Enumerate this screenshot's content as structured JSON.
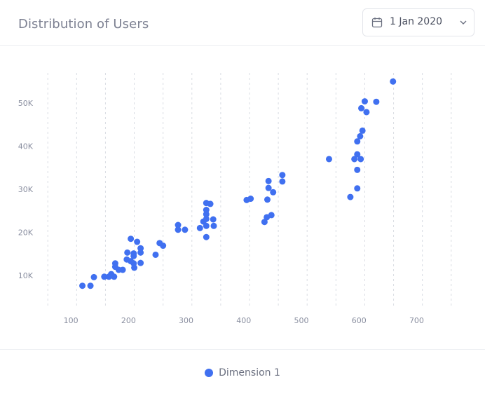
{
  "header": {
    "title": "Distribution of Users",
    "date_label": "1 Jan 2020",
    "calendar_icon": "calendar-icon",
    "chevron_icon": "chevron-down-icon"
  },
  "colors": {
    "accent": "#4070f0",
    "grid": "#d9dce3"
  },
  "chart_data": {
    "type": "scatter",
    "title": "Distribution of Users",
    "xlabel": "",
    "ylabel": "",
    "xlim": [
      50,
      770
    ],
    "ylim": [
      3000,
      57000
    ],
    "xticks": [
      100,
      200,
      300,
      400,
      500,
      600,
      700
    ],
    "yticks": [
      10000,
      20000,
      30000,
      40000,
      50000
    ],
    "xtick_labels": [
      "100",
      "200",
      "300",
      "400",
      "500",
      "600",
      "700"
    ],
    "ytick_labels": [
      "10K",
      "20K",
      "30K",
      "40K",
      "50K"
    ],
    "grid": "vertical-dashed",
    "legend_position": "bottom",
    "series": [
      {
        "name": "Dimension 1",
        "color": "#4070f0",
        "points": [
          [
            120,
            7600
          ],
          [
            134,
            7600
          ],
          [
            140,
            9600
          ],
          [
            158,
            9700
          ],
          [
            166,
            9700
          ],
          [
            170,
            10300
          ],
          [
            175,
            9700
          ],
          [
            177,
            12000
          ],
          [
            177,
            12800
          ],
          [
            183,
            11300
          ],
          [
            190,
            11300
          ],
          [
            197,
            13700
          ],
          [
            198,
            15300
          ],
          [
            204,
            13300
          ],
          [
            204,
            18500
          ],
          [
            209,
            14500
          ],
          [
            209,
            15100
          ],
          [
            209,
            12800
          ],
          [
            210,
            11800
          ],
          [
            215,
            17800
          ],
          [
            221,
            12900
          ],
          [
            221,
            15300
          ],
          [
            221,
            16300
          ],
          [
            247,
            14800
          ],
          [
            254,
            17500
          ],
          [
            260,
            16900
          ],
          [
            286,
            21700
          ],
          [
            286,
            20600
          ],
          [
            298,
            20600
          ],
          [
            324,
            21000
          ],
          [
            330,
            22500
          ],
          [
            335,
            25200
          ],
          [
            335,
            24200
          ],
          [
            335,
            21500
          ],
          [
            335,
            23100
          ],
          [
            335,
            18900
          ],
          [
            335,
            26800
          ],
          [
            342,
            26600
          ],
          [
            347,
            23000
          ],
          [
            348,
            21500
          ],
          [
            405,
            27500
          ],
          [
            412,
            27800
          ],
          [
            436,
            22400
          ],
          [
            440,
            23500
          ],
          [
            441,
            27600
          ],
          [
            443,
            30300
          ],
          [
            443,
            31900
          ],
          [
            448,
            24000
          ],
          [
            451,
            29300
          ],
          [
            467,
            33300
          ],
          [
            467,
            31800
          ],
          [
            548,
            37000
          ],
          [
            585,
            28200
          ],
          [
            592,
            37000
          ],
          [
            597,
            30200
          ],
          [
            597,
            34500
          ],
          [
            597,
            38100
          ],
          [
            597,
            41100
          ],
          [
            602,
            42300
          ],
          [
            603,
            37000
          ],
          [
            604,
            48800
          ],
          [
            606,
            43600
          ],
          [
            610,
            50400
          ],
          [
            613,
            47900
          ],
          [
            630,
            50300
          ],
          [
            659,
            55000
          ]
        ]
      }
    ]
  }
}
